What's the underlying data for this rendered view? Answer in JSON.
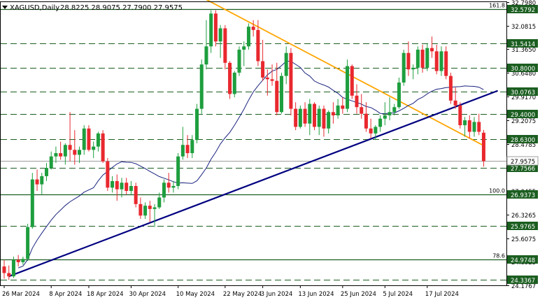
{
  "header": {
    "symbol": "XAGUSD,Daily",
    "ohlc": "28.8225 28.9075 27.7900 27.9575"
  },
  "chart_data": {
    "type": "candlestick",
    "symbol": "XAGUSD",
    "timeframe": "Daily",
    "last_ohlc": {
      "open": 28.8225,
      "high": 28.9075,
      "low": 27.79,
      "close": 27.9575
    },
    "ylim": [
      24.1767,
      32.798
    ],
    "y_ticks": [
      "32.7980",
      "32.0815",
      "31.3650",
      "30.6480",
      "29.9170",
      "29.2075",
      "28.4785",
      "27.7620",
      "27.0455",
      "26.3265",
      "25.6075",
      "24.8925",
      "24.1767"
    ],
    "x_tick_labels": [
      "26 Mar 2024",
      "8 Apr 2024",
      "18 Apr 2024",
      "30 Apr 2024",
      "10 May 2024",
      "22 May 2024",
      "3 Jun 2024",
      "13 Jun 2024",
      "25 Jun 2024",
      "5 Jul 2024",
      "17 Jul 2024"
    ],
    "horizontal_levels": [
      {
        "label": "32.5792",
        "value": 32.5792,
        "style": "solid",
        "fib": "161.8"
      },
      {
        "label": "31.5414",
        "value": 31.5414,
        "style": "dashed"
      },
      {
        "label": "30.8000",
        "value": 30.8,
        "style": "dashed"
      },
      {
        "label": "30.0763",
        "value": 30.0763,
        "style": "dashed"
      },
      {
        "label": "29.4000",
        "value": 29.4,
        "style": "dashed"
      },
      {
        "label": "28.6300",
        "value": 28.63,
        "style": "dashed"
      },
      {
        "label": "27.7566",
        "value": 27.7566,
        "style": "dashed"
      },
      {
        "label": "26.9373",
        "value": 26.9373,
        "style": "solid",
        "fib": "100.0"
      },
      {
        "label": "25.9765",
        "value": 25.9765,
        "style": "dashed"
      },
      {
        "label": "24.9748",
        "value": 24.9748,
        "style": "solid",
        "fib": "78.6"
      },
      {
        "label": "24.3367",
        "value": 24.3367,
        "style": "dashed"
      }
    ],
    "current_price": {
      "label": "27.9575",
      "value": 27.9575
    },
    "trendlines": [
      {
        "name": "resistance",
        "color": "#ffa500",
        "from": {
          "bar": 42,
          "price": 32.95
        },
        "to": {
          "bar": 102,
          "price": 28.43
        }
      },
      {
        "name": "support",
        "color": "#000080",
        "from": {
          "bar": 1,
          "price": 24.45
        },
        "to": {
          "bar": 105,
          "price": 30.1
        }
      }
    ],
    "moving_average_color": "#1a237e",
    "colors": {
      "bull": "#1e9e3e",
      "bear": "#e8282e",
      "grid": "#1b5e20"
    },
    "candles": [
      {
        "o": 24.75,
        "h": 24.95,
        "l": 24.38,
        "c": 24.55
      },
      {
        "o": 24.55,
        "h": 24.78,
        "l": 24.34,
        "c": 24.45
      },
      {
        "o": 24.45,
        "h": 25.05,
        "l": 24.4,
        "c": 24.95
      },
      {
        "o": 24.95,
        "h": 25.1,
        "l": 24.75,
        "c": 24.88
      },
      {
        "o": 24.88,
        "h": 25.05,
        "l": 24.8,
        "c": 24.98
      },
      {
        "o": 24.98,
        "h": 26.05,
        "l": 24.92,
        "c": 25.95
      },
      {
        "o": 25.95,
        "h": 27.6,
        "l": 25.9,
        "c": 27.4
      },
      {
        "o": 27.4,
        "h": 27.7,
        "l": 27.05,
        "c": 27.25
      },
      {
        "o": 27.25,
        "h": 27.6,
        "l": 26.95,
        "c": 27.5
      },
      {
        "o": 27.5,
        "h": 27.9,
        "l": 27.35,
        "c": 27.75
      },
      {
        "o": 27.75,
        "h": 28.25,
        "l": 27.7,
        "c": 28.1
      },
      {
        "o": 28.1,
        "h": 28.4,
        "l": 27.9,
        "c": 28.2
      },
      {
        "o": 28.2,
        "h": 28.55,
        "l": 28.0,
        "c": 28.1
      },
      {
        "o": 28.1,
        "h": 28.5,
        "l": 27.85,
        "c": 28.45
      },
      {
        "o": 28.45,
        "h": 29.45,
        "l": 27.95,
        "c": 28.3
      },
      {
        "o": 28.3,
        "h": 28.9,
        "l": 27.85,
        "c": 28.15
      },
      {
        "o": 28.15,
        "h": 28.4,
        "l": 27.9,
        "c": 28.3
      },
      {
        "o": 28.3,
        "h": 29.05,
        "l": 28.15,
        "c": 28.95
      },
      {
        "o": 28.95,
        "h": 29.05,
        "l": 28.25,
        "c": 28.3
      },
      {
        "o": 28.3,
        "h": 28.55,
        "l": 28.05,
        "c": 28.4
      },
      {
        "o": 28.4,
        "h": 28.85,
        "l": 28.25,
        "c": 28.8
      },
      {
        "o": 28.8,
        "h": 28.9,
        "l": 27.9,
        "c": 27.95
      },
      {
        "o": 27.95,
        "h": 28.05,
        "l": 27.05,
        "c": 27.15
      },
      {
        "o": 27.15,
        "h": 27.5,
        "l": 27.0,
        "c": 27.35
      },
      {
        "o": 27.35,
        "h": 27.55,
        "l": 26.75,
        "c": 27.1
      },
      {
        "o": 27.1,
        "h": 27.45,
        "l": 26.85,
        "c": 27.3
      },
      {
        "o": 27.3,
        "h": 27.45,
        "l": 26.95,
        "c": 27.05
      },
      {
        "o": 27.05,
        "h": 27.35,
        "l": 26.95,
        "c": 27.2
      },
      {
        "o": 27.2,
        "h": 27.3,
        "l": 26.55,
        "c": 26.65
      },
      {
        "o": 26.65,
        "h": 26.85,
        "l": 26.2,
        "c": 26.3
      },
      {
        "o": 26.3,
        "h": 26.7,
        "l": 26.2,
        "c": 26.6
      },
      {
        "o": 26.6,
        "h": 26.75,
        "l": 26.1,
        "c": 26.5
      },
      {
        "o": 26.5,
        "h": 26.65,
        "l": 25.95,
        "c": 26.55
      },
      {
        "o": 26.55,
        "h": 27.0,
        "l": 26.5,
        "c": 26.85
      },
      {
        "o": 26.85,
        "h": 27.4,
        "l": 26.7,
        "c": 27.3
      },
      {
        "o": 27.3,
        "h": 27.6,
        "l": 27.0,
        "c": 27.15
      },
      {
        "o": 27.15,
        "h": 27.35,
        "l": 27.0,
        "c": 27.2
      },
      {
        "o": 27.2,
        "h": 28.2,
        "l": 27.1,
        "c": 28.1
      },
      {
        "o": 28.1,
        "h": 29.0,
        "l": 28.0,
        "c": 28.45
      },
      {
        "o": 28.45,
        "h": 28.75,
        "l": 28.05,
        "c": 28.2
      },
      {
        "o": 28.2,
        "h": 28.75,
        "l": 28.05,
        "c": 28.6
      },
      {
        "o": 28.6,
        "h": 29.7,
        "l": 28.5,
        "c": 29.55
      },
      {
        "o": 29.55,
        "h": 31.05,
        "l": 29.4,
        "c": 30.9
      },
      {
        "o": 30.9,
        "h": 32.25,
        "l": 30.75,
        "c": 31.45
      },
      {
        "o": 31.45,
        "h": 32.55,
        "l": 31.25,
        "c": 32.45
      },
      {
        "o": 32.45,
        "h": 32.55,
        "l": 31.45,
        "c": 31.6
      },
      {
        "o": 31.6,
        "h": 32.1,
        "l": 31.1,
        "c": 32.0
      },
      {
        "o": 32.0,
        "h": 32.1,
        "l": 30.75,
        "c": 30.95
      },
      {
        "o": 30.95,
        "h": 31.0,
        "l": 29.85,
        "c": 30.0
      },
      {
        "o": 30.0,
        "h": 30.7,
        "l": 29.9,
        "c": 30.65
      },
      {
        "o": 30.65,
        "h": 31.45,
        "l": 30.55,
        "c": 31.35
      },
      {
        "o": 31.35,
        "h": 31.6,
        "l": 30.85,
        "c": 31.45
      },
      {
        "o": 31.45,
        "h": 32.15,
        "l": 31.35,
        "c": 32.05
      },
      {
        "o": 32.05,
        "h": 32.25,
        "l": 31.75,
        "c": 31.95
      },
      {
        "o": 31.95,
        "h": 32.25,
        "l": 30.85,
        "c": 31.0
      },
      {
        "o": 31.0,
        "h": 31.65,
        "l": 30.4,
        "c": 30.5
      },
      {
        "o": 30.5,
        "h": 30.75,
        "l": 29.95,
        "c": 30.45
      },
      {
        "o": 30.45,
        "h": 30.9,
        "l": 30.25,
        "c": 30.4
      },
      {
        "o": 30.4,
        "h": 30.95,
        "l": 29.35,
        "c": 29.45
      },
      {
        "o": 29.45,
        "h": 30.65,
        "l": 29.4,
        "c": 30.55
      },
      {
        "o": 30.55,
        "h": 31.45,
        "l": 30.3,
        "c": 31.25
      },
      {
        "o": 31.25,
        "h": 31.4,
        "l": 29.35,
        "c": 29.55
      },
      {
        "o": 29.55,
        "h": 29.75,
        "l": 28.9,
        "c": 29.0
      },
      {
        "o": 29.0,
        "h": 29.65,
        "l": 28.95,
        "c": 29.55
      },
      {
        "o": 29.55,
        "h": 29.75,
        "l": 29.0,
        "c": 29.1
      },
      {
        "o": 29.1,
        "h": 29.85,
        "l": 28.75,
        "c": 29.7
      },
      {
        "o": 29.7,
        "h": 29.75,
        "l": 28.9,
        "c": 29.0
      },
      {
        "o": 29.0,
        "h": 29.65,
        "l": 28.75,
        "c": 29.55
      },
      {
        "o": 29.55,
        "h": 29.65,
        "l": 28.7,
        "c": 28.95
      },
      {
        "o": 28.95,
        "h": 29.5,
        "l": 28.8,
        "c": 29.45
      },
      {
        "o": 29.45,
        "h": 29.75,
        "l": 29.1,
        "c": 29.35
      },
      {
        "o": 29.35,
        "h": 29.85,
        "l": 29.25,
        "c": 29.65
      },
      {
        "o": 29.65,
        "h": 29.9,
        "l": 29.4,
        "c": 29.55
      },
      {
        "o": 29.55,
        "h": 31.05,
        "l": 29.45,
        "c": 30.85
      },
      {
        "o": 30.85,
        "h": 30.9,
        "l": 29.85,
        "c": 29.95
      },
      {
        "o": 29.95,
        "h": 30.3,
        "l": 29.4,
        "c": 29.6
      },
      {
        "o": 29.6,
        "h": 30.0,
        "l": 29.25,
        "c": 29.4
      },
      {
        "o": 29.4,
        "h": 29.75,
        "l": 28.85,
        "c": 28.95
      },
      {
        "o": 28.95,
        "h": 29.25,
        "l": 28.65,
        "c": 28.8
      },
      {
        "o": 28.8,
        "h": 29.05,
        "l": 28.6,
        "c": 29.0
      },
      {
        "o": 29.0,
        "h": 29.35,
        "l": 28.85,
        "c": 29.25
      },
      {
        "o": 29.25,
        "h": 29.75,
        "l": 29.05,
        "c": 29.35
      },
      {
        "o": 29.35,
        "h": 29.9,
        "l": 29.2,
        "c": 29.45
      },
      {
        "o": 29.45,
        "h": 29.7,
        "l": 29.35,
        "c": 29.6
      },
      {
        "o": 29.6,
        "h": 30.5,
        "l": 29.55,
        "c": 30.35
      },
      {
        "o": 30.35,
        "h": 31.35,
        "l": 30.25,
        "c": 31.25
      },
      {
        "o": 31.25,
        "h": 31.6,
        "l": 30.55,
        "c": 30.75
      },
      {
        "o": 30.75,
        "h": 30.9,
        "l": 30.45,
        "c": 30.8
      },
      {
        "o": 30.8,
        "h": 31.45,
        "l": 30.6,
        "c": 31.35
      },
      {
        "o": 31.35,
        "h": 31.5,
        "l": 30.65,
        "c": 30.8
      },
      {
        "o": 30.8,
        "h": 31.55,
        "l": 30.7,
        "c": 31.4
      },
      {
        "o": 31.4,
        "h": 31.75,
        "l": 31.1,
        "c": 31.3
      },
      {
        "o": 31.3,
        "h": 31.5,
        "l": 30.6,
        "c": 30.7
      },
      {
        "o": 30.7,
        "h": 31.45,
        "l": 30.55,
        "c": 31.3
      },
      {
        "o": 31.3,
        "h": 31.45,
        "l": 30.45,
        "c": 30.55
      },
      {
        "o": 30.55,
        "h": 30.65,
        "l": 29.7,
        "c": 29.8
      },
      {
        "o": 29.8,
        "h": 30.2,
        "l": 29.55,
        "c": 29.65
      },
      {
        "o": 29.65,
        "h": 29.75,
        "l": 28.95,
        "c": 29.05
      },
      {
        "o": 29.05,
        "h": 29.3,
        "l": 28.7,
        "c": 29.2
      },
      {
        "o": 29.2,
        "h": 29.35,
        "l": 28.65,
        "c": 28.85
      },
      {
        "o": 28.85,
        "h": 29.3,
        "l": 28.7,
        "c": 29.15
      },
      {
        "o": 29.15,
        "h": 29.4,
        "l": 28.75,
        "c": 28.85
      },
      {
        "o": 28.8225,
        "h": 28.9075,
        "l": 27.79,
        "c": 27.9575
      }
    ]
  }
}
